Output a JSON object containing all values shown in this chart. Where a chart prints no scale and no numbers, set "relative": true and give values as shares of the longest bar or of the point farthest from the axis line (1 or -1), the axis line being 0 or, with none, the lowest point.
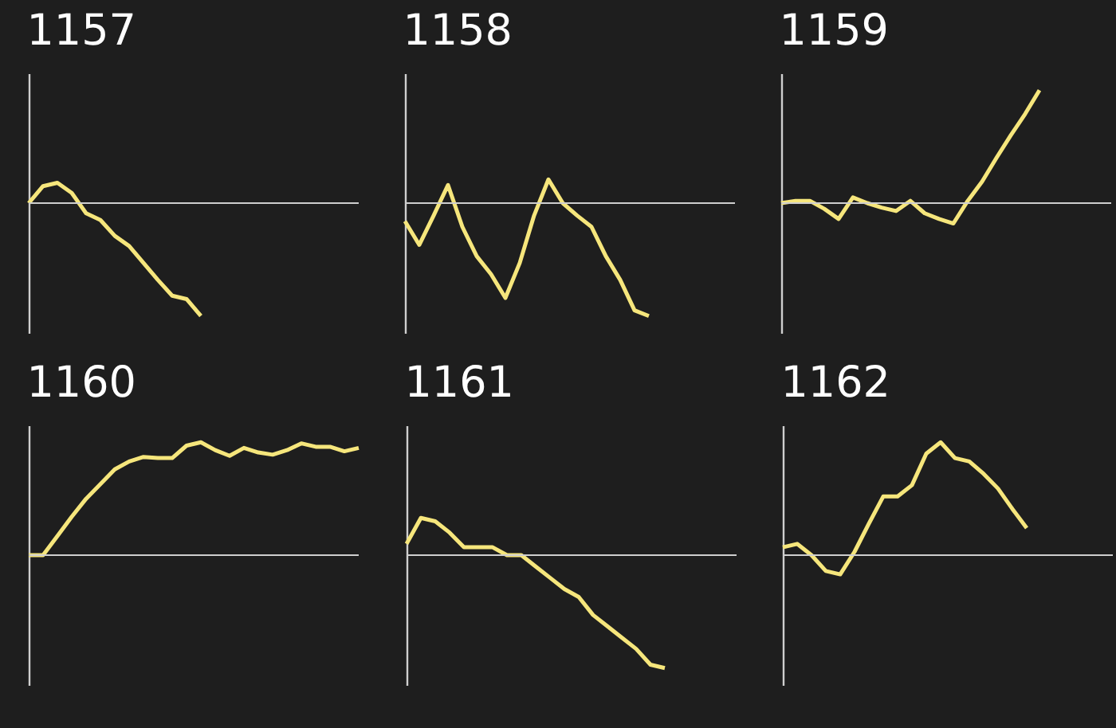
{
  "chart_data": [
    {
      "type": "line",
      "title": "1157",
      "relative": true,
      "categories": [
        null,
        null,
        null,
        null,
        null,
        null,
        null,
        null,
        null,
        null,
        null,
        null,
        null,
        null,
        null,
        null,
        null,
        null,
        null,
        null,
        null,
        null,
        null,
        null
      ],
      "series": [
        {
          "color": "#f6e67c",
          "values": [
            0,
            0.15,
            0.18,
            0.09,
            -0.09,
            -0.15,
            -0.29,
            -0.38,
            -0.53,
            -0.68,
            -0.82,
            -0.85,
            -1,
            null,
            null,
            null,
            null,
            null,
            null,
            null,
            null,
            null,
            null,
            null
          ]
        }
      ]
    },
    {
      "type": "line",
      "title": "1158",
      "relative": true,
      "categories": [
        null,
        null,
        null,
        null,
        null,
        null,
        null,
        null,
        null,
        null,
        null,
        null,
        null,
        null,
        null,
        null,
        null,
        null,
        null,
        null,
        null,
        null,
        null,
        null
      ],
      "series": [
        {
          "color": "#f6e67c",
          "values": [
            -0.16,
            -0.37,
            -0.11,
            0.16,
            -0.21,
            -0.47,
            -0.63,
            -0.84,
            -0.53,
            -0.11,
            0.21,
            0,
            -0.11,
            -0.21,
            -0.47,
            -0.68,
            -0.95,
            -1,
            null,
            null,
            null,
            null,
            null,
            null
          ]
        }
      ]
    },
    {
      "type": "line",
      "title": "1159",
      "relative": true,
      "categories": [
        null,
        null,
        null,
        null,
        null,
        null,
        null,
        null,
        null,
        null,
        null,
        null,
        null,
        null,
        null,
        null,
        null,
        null,
        null,
        null,
        null,
        null,
        null,
        null
      ],
      "series": [
        {
          "color": "#f6e67c",
          "values": [
            0,
            0.02,
            0.02,
            -0.05,
            -0.14,
            0.05,
            0,
            -0.04,
            -0.07,
            0.02,
            -0.09,
            -0.14,
            -0.18,
            0.02,
            0.19,
            0.4,
            0.6,
            0.79,
            1,
            null,
            null,
            null,
            null,
            null
          ]
        }
      ]
    },
    {
      "type": "line",
      "title": "1160",
      "relative": true,
      "categories": [
        null,
        null,
        null,
        null,
        null,
        null,
        null,
        null,
        null,
        null,
        null,
        null,
        null,
        null,
        null,
        null,
        null,
        null,
        null,
        null,
        null,
        null,
        null,
        null
      ],
      "series": [
        {
          "color": "#f6e67c",
          "values": [
            0,
            0,
            0.17,
            0.34,
            0.5,
            0.63,
            0.76,
            0.83,
            0.87,
            0.86,
            0.86,
            0.97,
            1,
            0.93,
            0.88,
            0.95,
            0.91,
            0.89,
            0.93,
            0.99,
            0.96,
            0.96,
            0.92,
            0.95
          ]
        }
      ]
    },
    {
      "type": "line",
      "title": "1161",
      "relative": true,
      "categories": [
        null,
        null,
        null,
        null,
        null,
        null,
        null,
        null,
        null,
        null,
        null,
        null,
        null,
        null,
        null,
        null,
        null,
        null,
        null,
        null,
        null,
        null,
        null,
        null
      ],
      "series": [
        {
          "color": "#f6e67c",
          "values": [
            0.1,
            0.33,
            0.3,
            0.2,
            0.07,
            0.07,
            0.07,
            0,
            0,
            -0.1,
            -0.2,
            -0.3,
            -0.37,
            -0.53,
            -0.63,
            -0.73,
            -0.83,
            -0.97,
            -1,
            null,
            null,
            null,
            null,
            null
          ]
        }
      ]
    },
    {
      "type": "line",
      "title": "1162",
      "relative": true,
      "categories": [
        null,
        null,
        null,
        null,
        null,
        null,
        null,
        null,
        null,
        null,
        null,
        null,
        null,
        null,
        null,
        null,
        null,
        null,
        null,
        null,
        null,
        null,
        null,
        null
      ],
      "series": [
        {
          "color": "#f6e67c",
          "values": [
            0.07,
            0.1,
            0,
            -0.14,
            -0.17,
            0.03,
            0.28,
            0.52,
            0.52,
            0.62,
            0.9,
            1,
            0.86,
            0.83,
            0.72,
            0.59,
            0.41,
            0.24,
            null,
            null,
            null,
            null,
            null,
            null
          ]
        }
      ]
    }
  ]
}
